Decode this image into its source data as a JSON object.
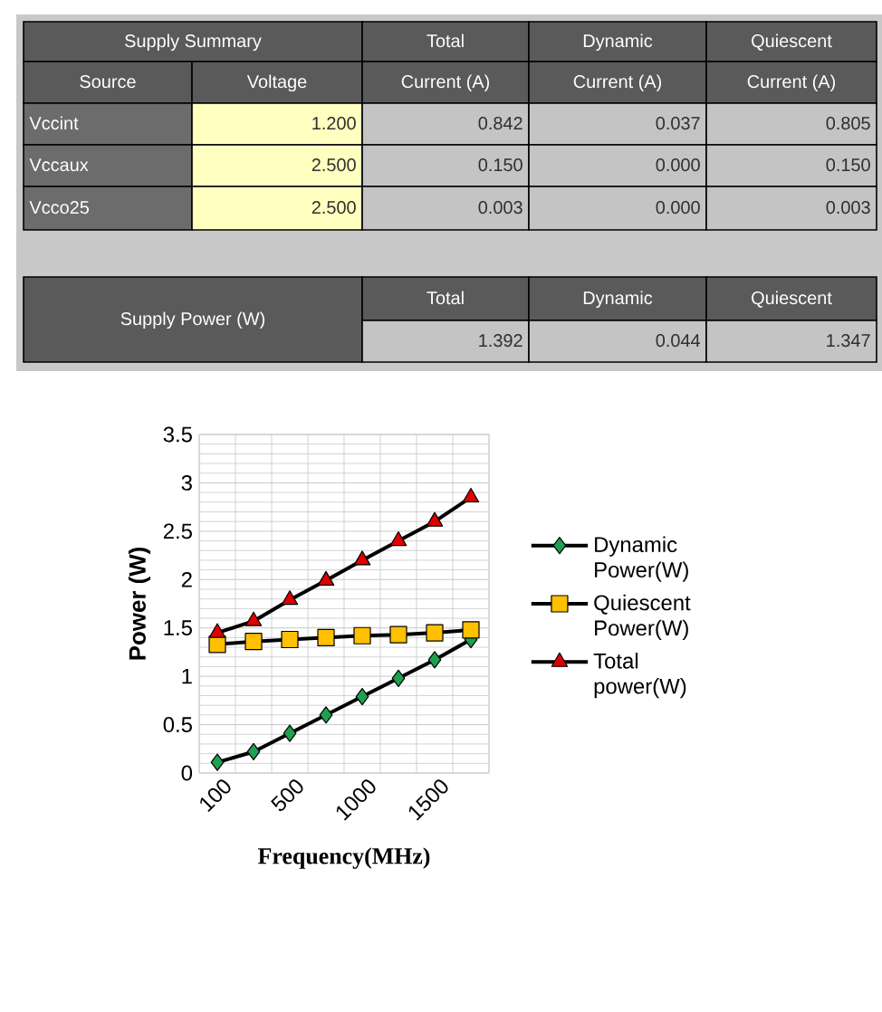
{
  "chart_data": [
    {
      "type": "other",
      "annotations": [
        "Supply  Summary",
        "Total",
        "Dynamic",
        "Quiescent",
        "Source",
        "Voltage",
        "Current (A)",
        "Current (A)",
        "Current (A)",
        "Vccint",
        "1.200",
        "0.842",
        "0.037",
        "0.805",
        "Vccaux",
        "2.500",
        "0.150",
        "0.000",
        "0.150",
        "Vcco25",
        "2.500",
        "0.003",
        "0.000",
        "0.003",
        "Supply  Power (W)",
        "Total",
        "Dynamic",
        "Quiescent",
        "1.392",
        "0.044",
        "1.347"
      ]
    },
    {
      "type": "line",
      "xlabel": "Frequency(MHz)",
      "ylabel": "Power (W)",
      "categories": [
        "100",
        null,
        "500",
        null,
        "1000",
        null,
        "1500",
        null
      ],
      "series": [
        {
          "name": "Dynamic Power(W)",
          "color": "#1fa050",
          "marker": "diamond",
          "values": [
            0.11,
            0.22,
            0.41,
            0.6,
            0.79,
            0.98,
            1.17,
            1.38
          ]
        },
        {
          "name": "Quiescent Power(W)",
          "color": "#ffc000",
          "marker": "square",
          "values": [
            1.33,
            1.36,
            1.38,
            1.4,
            1.42,
            1.43,
            1.45,
            1.48
          ]
        },
        {
          "name": "Total power(W)",
          "color": "#e00000",
          "marker": "triangle",
          "values": [
            1.45,
            1.57,
            1.79,
            1.99,
            2.2,
            2.4,
            2.6,
            2.85
          ]
        }
      ],
      "ylim": [
        0,
        3.5
      ],
      "yticks": [
        0,
        0.5,
        1,
        1.5,
        2,
        2.5,
        3,
        3.5
      ],
      "grid": true,
      "legend": "right"
    }
  ]
}
